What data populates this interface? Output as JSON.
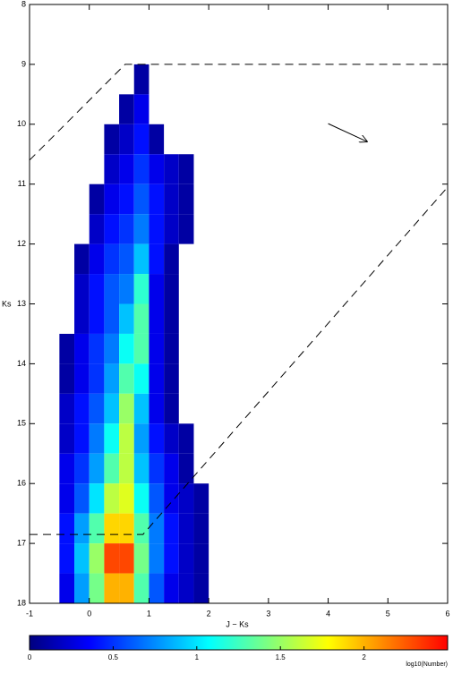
{
  "chart_data": {
    "type": "heatmap",
    "x_label": "J − Ks",
    "y_label": "Ks",
    "xlim": [
      -1,
      6
    ],
    "xticks": [
      -1,
      0,
      1,
      2,
      3,
      4,
      5,
      6
    ],
    "ylim": [
      8,
      18
    ],
    "yticks": [
      8,
      9,
      10,
      11,
      12,
      13,
      14,
      15,
      16,
      17,
      18
    ],
    "y_inverted": true,
    "x_bins": [
      -0.5,
      -0.25,
      0,
      0.25,
      0.5,
      0.75,
      1.0,
      1.25,
      1.5,
      1.75,
      2.0
    ],
    "y_bins": [
      9,
      9.5,
      10,
      10.5,
      11,
      11.5,
      12,
      12.5,
      13,
      13.5,
      14,
      14.5,
      15,
      15.5,
      16,
      16.5,
      17,
      17.5,
      18
    ],
    "z": [
      [
        null,
        null,
        null,
        null,
        null,
        0.1,
        null,
        null,
        null,
        null
      ],
      [
        null,
        null,
        null,
        null,
        0.1,
        0.3,
        null,
        null,
        null,
        null
      ],
      [
        null,
        null,
        null,
        0.1,
        0.2,
        0.4,
        0.1,
        null,
        null,
        null
      ],
      [
        null,
        null,
        null,
        0.2,
        0.3,
        0.5,
        0.3,
        0.2,
        0.1,
        null
      ],
      [
        null,
        null,
        0.1,
        0.3,
        0.4,
        0.6,
        0.4,
        0.2,
        0.1,
        null
      ],
      [
        null,
        null,
        0.2,
        0.4,
        0.5,
        0.7,
        0.4,
        0.2,
        0.1,
        null
      ],
      [
        null,
        0.1,
        0.3,
        0.5,
        0.6,
        0.9,
        0.4,
        0.1,
        null,
        null
      ],
      [
        null,
        0.2,
        0.4,
        0.6,
        0.7,
        1.2,
        0.3,
        0.1,
        null,
        null
      ],
      [
        null,
        0.2,
        0.4,
        0.6,
        0.9,
        1.3,
        0.3,
        0.1,
        null,
        null
      ],
      [
        0.1,
        0.3,
        0.5,
        0.7,
        1.1,
        1.3,
        0.3,
        0.1,
        null,
        null
      ],
      [
        0.1,
        0.3,
        0.5,
        0.8,
        1.3,
        1.1,
        0.3,
        0.1,
        null,
        null
      ],
      [
        0.2,
        0.4,
        0.6,
        0.9,
        1.5,
        0.9,
        0.3,
        0.1,
        null,
        null
      ],
      [
        0.2,
        0.4,
        0.7,
        1.1,
        1.6,
        0.8,
        0.4,
        0.2,
        0.1,
        null
      ],
      [
        0.3,
        0.5,
        0.8,
        1.3,
        1.6,
        0.9,
        0.5,
        0.3,
        0.1,
        null
      ],
      [
        0.3,
        0.6,
        1.0,
        1.6,
        1.7,
        1.1,
        0.6,
        0.3,
        0.2,
        0.1
      ],
      [
        0.4,
        0.8,
        1.3,
        1.9,
        1.9,
        1.3,
        0.7,
        0.4,
        0.2,
        0.1
      ],
      [
        0.4,
        0.9,
        1.5,
        2.3,
        2.3,
        1.4,
        0.7,
        0.4,
        0.2,
        0.1
      ],
      [
        0.3,
        0.8,
        1.4,
        2.0,
        2.0,
        1.3,
        0.6,
        0.3,
        0.2,
        0.1
      ]
    ],
    "colormap": [
      "#00007f",
      "#0000ff",
      "#007fff",
      "#00ffff",
      "#7fff7f",
      "#ffff00",
      "#ff7f00",
      "#ff0000"
    ],
    "clim": [
      0,
      2.5
    ],
    "cticks": [
      0,
      0.5,
      1,
      1.5,
      2
    ],
    "colorbar_label": "log10(Number)",
    "lines": [
      {
        "x": [
          -1,
          0.6,
          6
        ],
        "y": [
          10.6,
          9.0,
          9.0
        ]
      },
      {
        "x": [
          -1,
          0.9,
          6
        ],
        "y": [
          16.85,
          16.85,
          11.05
        ]
      }
    ],
    "arrow": {
      "x": [
        4.0,
        4.65
      ],
      "y": [
        9.99,
        10.29
      ]
    }
  }
}
